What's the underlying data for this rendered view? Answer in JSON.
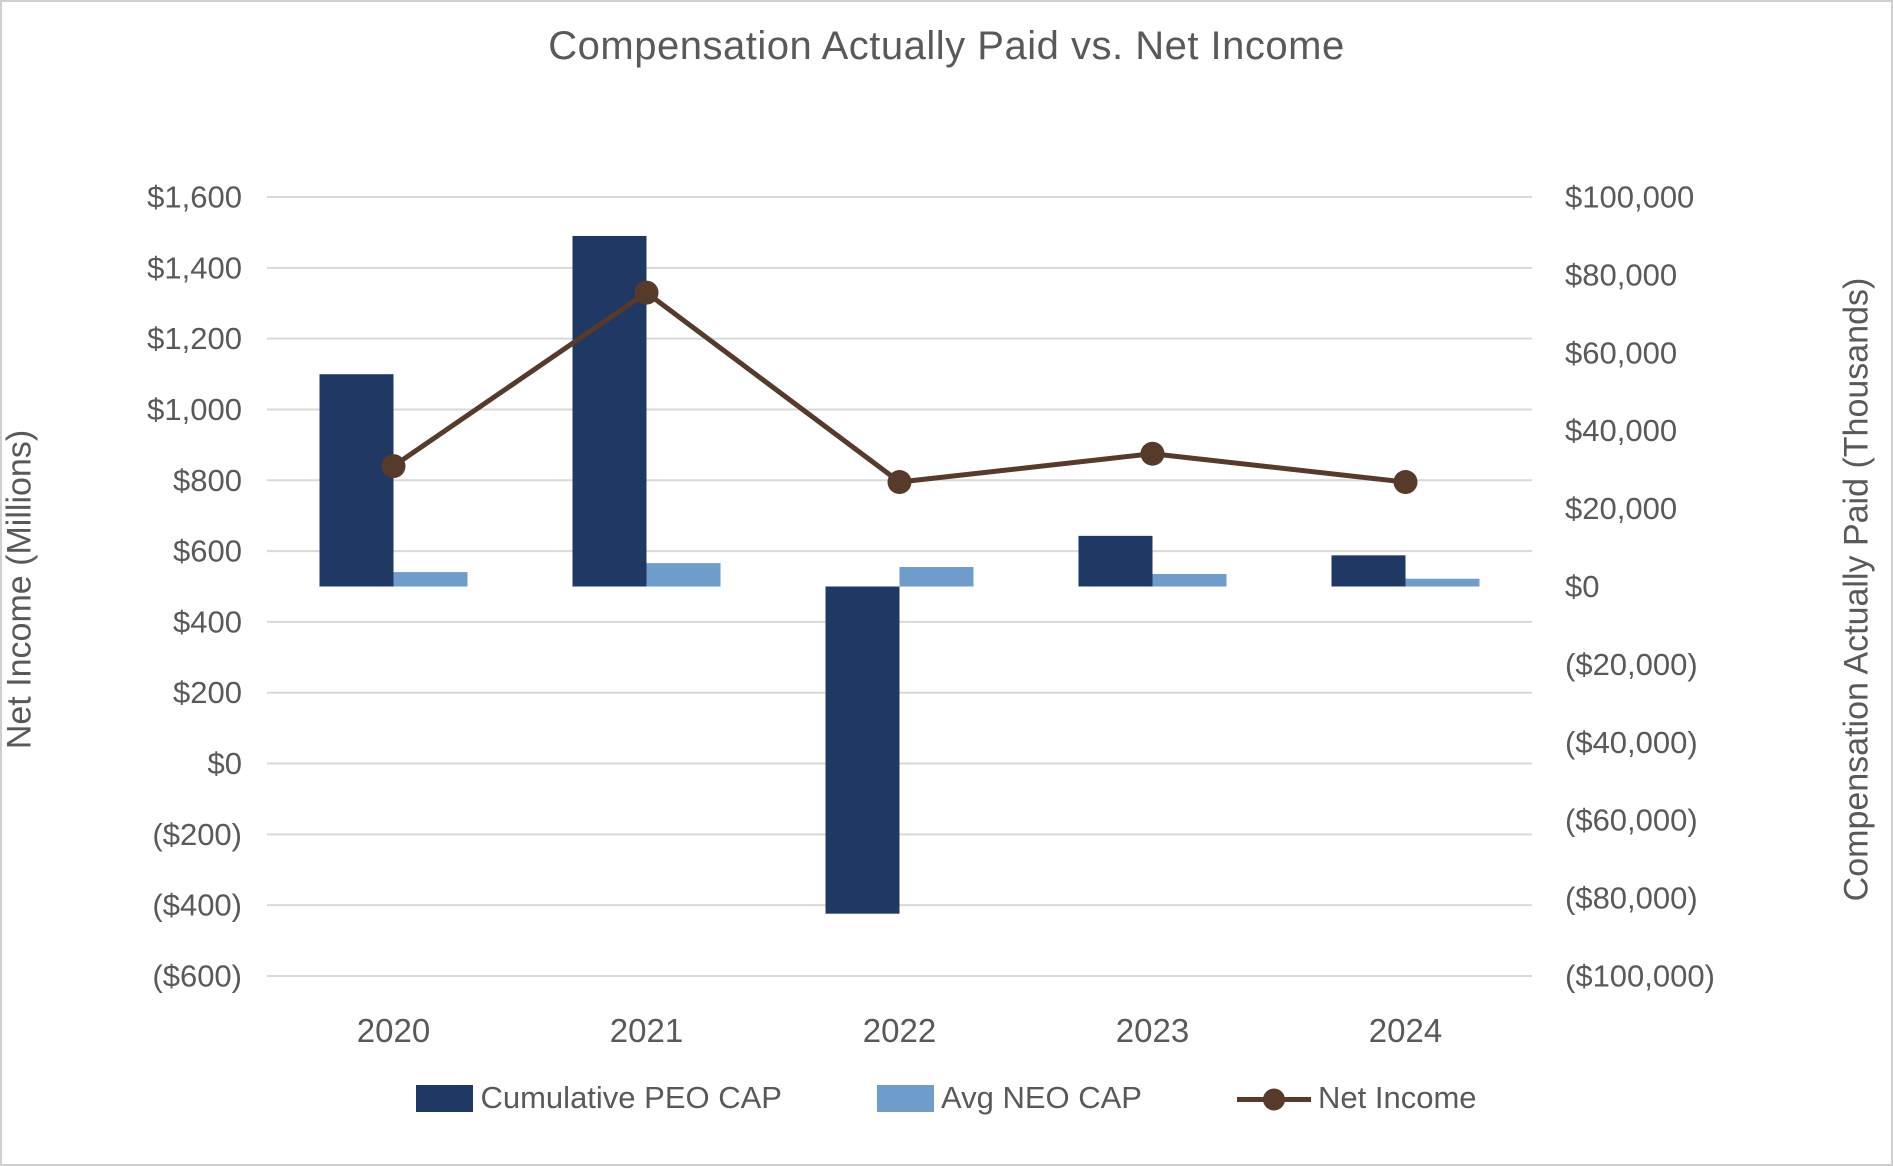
{
  "figure": {
    "title": "Compensation Actually Paid vs. Net Income"
  },
  "chart_data": {
    "type": "combo",
    "title": "Compensation Actually Paid vs. Net Income",
    "categories": [
      "2020",
      "2021",
      "2022",
      "2023",
      "2024"
    ],
    "series": [
      {
        "name": "Cumulative PEO CAP",
        "type": "bar",
        "axis": "right",
        "color": "#1F3864",
        "values": [
          54500,
          90000,
          -84000,
          13000,
          8000
        ]
      },
      {
        "name": "Avg NEO CAP",
        "type": "bar",
        "axis": "right",
        "color": "#6E9DCB",
        "values": [
          3700,
          6000,
          5000,
          3200,
          2000
        ]
      },
      {
        "name": "Net Income",
        "type": "line",
        "axis": "left",
        "color": "#573A2A",
        "values": [
          840,
          1330,
          795,
          875,
          795
        ]
      }
    ],
    "left_axis": {
      "title": "Net Income (Millions)",
      "min": -600,
      "max": 1600,
      "step": 200,
      "tick_labels": [
        "$1,600",
        "$1,400",
        "$1,200",
        "$1,000",
        "$800",
        "$600",
        "$400",
        "$200",
        "$0",
        "($200)",
        "($400)",
        "($600)"
      ]
    },
    "right_axis": {
      "title": "Compensation Actually Paid (Thousands)",
      "min": -100000,
      "max": 100000,
      "step": 20000,
      "tick_labels": [
        "$100,000",
        "$80,000",
        "$60,000",
        "$40,000",
        "$20,000",
        "$0",
        "($20,000)",
        "($40,000)",
        "($60,000)",
        "($80,000)",
        "($100,000)"
      ]
    },
    "x_axis": {
      "tick_labels": [
        "2020",
        "2021",
        "2022",
        "2023",
        "2024"
      ]
    },
    "grid": "horizontal-left-axis-ticks",
    "legend_position": "bottom"
  },
  "colors": {
    "text": "#595959",
    "gridline": "#D9D9D9",
    "background": "#FFFFFF",
    "border": "#CFCFCF"
  }
}
